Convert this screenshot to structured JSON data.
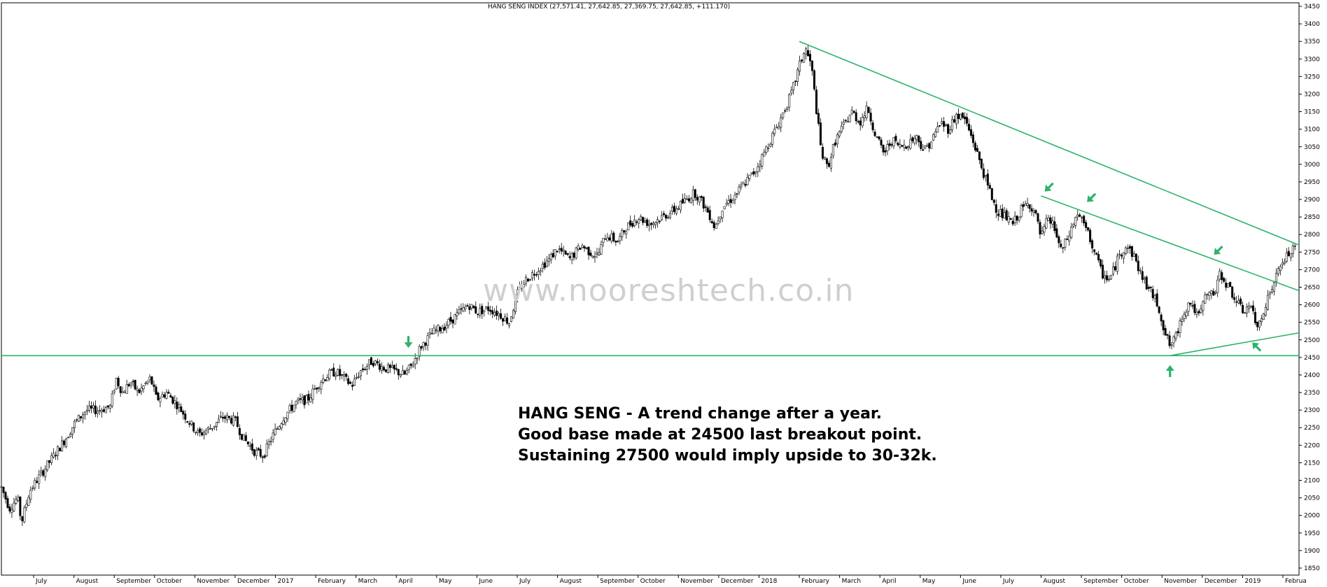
{
  "chart_data": {
    "type": "candlestick",
    "title": "HANG SENG INDEX (27,571.41, 27,642.85, 27,369.75, 27,642.85, +111.170)",
    "xlabel": "",
    "ylabel": "",
    "ylim": [
      18300,
      34600
    ],
    "grid": false,
    "y_ticks": [
      18500,
      19000,
      19500,
      20000,
      20500,
      21000,
      21500,
      22000,
      22500,
      23000,
      23500,
      24000,
      24500,
      25000,
      25500,
      26000,
      26500,
      27000,
      27500,
      28000,
      28500,
      29000,
      29500,
      30000,
      30500,
      31000,
      31500,
      32000,
      32500,
      33000,
      33500,
      34000,
      34500
    ],
    "y_tick_labels": [
      "1850",
      "1900",
      "1950",
      "2000",
      "2050",
      "2100",
      "2150",
      "2200",
      "2250",
      "2300",
      "2350",
      "2400",
      "2450",
      "2500",
      "2550",
      "2600",
      "2650",
      "2700",
      "2750",
      "2800",
      "2850",
      "2900",
      "2950",
      "3000",
      "3050",
      "3100",
      "3150",
      "3200",
      "3250",
      "3300",
      "3350",
      "3400",
      "3450"
    ],
    "x_ticks": [
      {
        "label": "July",
        "x": 0.0
      },
      {
        "label": "August",
        "x": 1.0
      },
      {
        "label": "September",
        "x": 2.0
      },
      {
        "label": "October",
        "x": 3.0
      },
      {
        "label": "November",
        "x": 4.0
      },
      {
        "label": "December",
        "x": 5.0
      },
      {
        "label": "2017",
        "x": 6.0
      },
      {
        "label": "February",
        "x": 7.0
      },
      {
        "label": "March",
        "x": 8.0
      },
      {
        "label": "April",
        "x": 9.0
      },
      {
        "label": "May",
        "x": 10.0
      },
      {
        "label": "June",
        "x": 11.0
      },
      {
        "label": "July",
        "x": 12.0
      },
      {
        "label": "August",
        "x": 13.0
      },
      {
        "label": "September",
        "x": 14.0
      },
      {
        "label": "October",
        "x": 15.0
      },
      {
        "label": "November",
        "x": 16.0
      },
      {
        "label": "December",
        "x": 17.0
      },
      {
        "label": "2018",
        "x": 18.0
      },
      {
        "label": "February",
        "x": 19.0
      },
      {
        "label": "March",
        "x": 20.0
      },
      {
        "label": "April",
        "x": 21.0
      },
      {
        "label": "May",
        "x": 22.0
      },
      {
        "label": "June",
        "x": 23.0
      },
      {
        "label": "July",
        "x": 24.0
      },
      {
        "label": "August",
        "x": 25.0
      },
      {
        "label": "September",
        "x": 26.0
      },
      {
        "label": "October",
        "x": 27.0
      },
      {
        "label": "November",
        "x": 28.0
      },
      {
        "label": "December",
        "x": 29.0
      },
      {
        "label": "2019",
        "x": 30.0
      },
      {
        "label": "Februa",
        "x": 31.0
      }
    ],
    "xlim": [
      -0.8,
      31.4
    ],
    "price_path": [
      [
        -0.8,
        20800
      ],
      [
        -0.6,
        20200
      ],
      [
        -0.4,
        20500
      ],
      [
        -0.3,
        19800
      ],
      [
        -0.1,
        20700
      ],
      [
        0.2,
        21200
      ],
      [
        0.5,
        21700
      ],
      [
        0.8,
        22200
      ],
      [
        1.0,
        22600
      ],
      [
        1.3,
        23000
      ],
      [
        1.6,
        23000
      ],
      [
        1.9,
        23100
      ],
      [
        2.05,
        23900
      ],
      [
        2.2,
        23500
      ],
      [
        2.4,
        23800
      ],
      [
        2.6,
        23500
      ],
      [
        2.9,
        23900
      ],
      [
        3.05,
        23300
      ],
      [
        3.3,
        23500
      ],
      [
        3.6,
        23100
      ],
      [
        3.9,
        22600
      ],
      [
        4.1,
        22300
      ],
      [
        4.4,
        22500
      ],
      [
        4.7,
        22800
      ],
      [
        5.0,
        22700
      ],
      [
        5.2,
        22200
      ],
      [
        5.5,
        21800
      ],
      [
        5.7,
        21700
      ],
      [
        5.9,
        22200
      ],
      [
        6.2,
        22800
      ],
      [
        6.5,
        23200
      ],
      [
        6.8,
        23300
      ],
      [
        7.1,
        23800
      ],
      [
        7.3,
        24000
      ],
      [
        7.5,
        24100
      ],
      [
        7.7,
        23900
      ],
      [
        7.9,
        23700
      ],
      [
        8.1,
        24100
      ],
      [
        8.4,
        24400
      ],
      [
        8.7,
        24200
      ],
      [
        9.0,
        24100
      ],
      [
        9.2,
        24000
      ],
      [
        9.4,
        24300
      ],
      [
        9.6,
        24800
      ],
      [
        9.9,
        25200
      ],
      [
        10.2,
        25400
      ],
      [
        10.5,
        25700
      ],
      [
        10.8,
        26000
      ],
      [
        11.0,
        25800
      ],
      [
        11.3,
        25900
      ],
      [
        11.6,
        25700
      ],
      [
        11.8,
        25500
      ],
      [
        12.0,
        26300
      ],
      [
        12.2,
        26700
      ],
      [
        12.5,
        27000
      ],
      [
        12.8,
        27300
      ],
      [
        13.0,
        27600
      ],
      [
        13.3,
        27300
      ],
      [
        13.6,
        27700
      ],
      [
        13.8,
        27500
      ],
      [
        14.0,
        27400
      ],
      [
        14.2,
        28000
      ],
      [
        14.5,
        27800
      ],
      [
        14.7,
        28200
      ],
      [
        15.0,
        28500
      ],
      [
        15.3,
        28300
      ],
      [
        15.6,
        28500
      ],
      [
        15.9,
        28700
      ],
      [
        16.2,
        29000
      ],
      [
        16.4,
        29200
      ],
      [
        16.6,
        28900
      ],
      [
        16.8,
        28500
      ],
      [
        16.9,
        28200
      ],
      [
        17.1,
        28800
      ],
      [
        17.4,
        29100
      ],
      [
        17.6,
        29400
      ],
      [
        17.9,
        29800
      ],
      [
        18.2,
        30500
      ],
      [
        18.5,
        31200
      ],
      [
        18.8,
        32000
      ],
      [
        19.0,
        32800
      ],
      [
        19.15,
        33300
      ],
      [
        19.3,
        32800
      ],
      [
        19.45,
        31300
      ],
      [
        19.55,
        30300
      ],
      [
        19.7,
        29900
      ],
      [
        19.9,
        30700
      ],
      [
        20.1,
        31100
      ],
      [
        20.3,
        31500
      ],
      [
        20.5,
        31200
      ],
      [
        20.7,
        31600
      ],
      [
        20.9,
        30800
      ],
      [
        21.1,
        30300
      ],
      [
        21.3,
        30700
      ],
      [
        21.5,
        30500
      ],
      [
        21.7,
        30600
      ],
      [
        21.9,
        30800
      ],
      [
        22.1,
        30400
      ],
      [
        22.3,
        30700
      ],
      [
        22.5,
        31200
      ],
      [
        22.7,
        31000
      ],
      [
        22.9,
        31400
      ],
      [
        23.1,
        31300
      ],
      [
        23.3,
        30700
      ],
      [
        23.5,
        30000
      ],
      [
        23.7,
        29300
      ],
      [
        23.9,
        28700
      ],
      [
        24.1,
        28500
      ],
      [
        24.3,
        28300
      ],
      [
        24.5,
        28700
      ],
      [
        24.7,
        28900
      ],
      [
        24.85,
        28600
      ],
      [
        25.0,
        27900
      ],
      [
        25.15,
        28400
      ],
      [
        25.3,
        28300
      ],
      [
        25.5,
        27500
      ],
      [
        25.7,
        28000
      ],
      [
        25.9,
        28600
      ],
      [
        26.1,
        28200
      ],
      [
        26.3,
        27600
      ],
      [
        26.5,
        26900
      ],
      [
        26.7,
        26700
      ],
      [
        26.9,
        27300
      ],
      [
        27.1,
        27700
      ],
      [
        27.3,
        27400
      ],
      [
        27.5,
        26800
      ],
      [
        27.7,
        26400
      ],
      [
        27.9,
        26000
      ],
      [
        28.05,
        25300
      ],
      [
        28.2,
        24800
      ],
      [
        28.35,
        25100
      ],
      [
        28.5,
        25700
      ],
      [
        28.7,
        26100
      ],
      [
        28.9,
        25600
      ],
      [
        29.1,
        26300
      ],
      [
        29.3,
        26300
      ],
      [
        29.45,
        26900
      ],
      [
        29.6,
        26600
      ],
      [
        29.8,
        26200
      ],
      [
        30.0,
        25800
      ],
      [
        30.2,
        26000
      ],
      [
        30.35,
        25300
      ],
      [
        30.5,
        25800
      ],
      [
        30.7,
        26400
      ],
      [
        30.9,
        27000
      ],
      [
        31.1,
        27400
      ],
      [
        31.3,
        27600
      ]
    ],
    "horizontal_line": {
      "y": 24550,
      "color": "#2db36b"
    },
    "trendlines": [
      {
        "name": "resistance-from-peak",
        "points": [
          [
            19.0,
            33500
          ],
          [
            31.4,
            27700
          ]
        ],
        "color": "#2db36b"
      },
      {
        "name": "resistance-inner",
        "points": [
          [
            25.0,
            29100
          ],
          [
            31.4,
            26400
          ]
        ],
        "color": "#2db36b"
      },
      {
        "name": "support-rising",
        "points": [
          [
            28.2,
            24550
          ],
          [
            31.4,
            25200
          ]
        ],
        "color": "#2db36b"
      }
    ],
    "markers": [
      {
        "name": "arrow-down-april",
        "x": 9.3,
        "y": 24950,
        "dir": "down"
      },
      {
        "name": "arrow-down-left-august",
        "x": 25.2,
        "y": 29350,
        "dir": "down-left"
      },
      {
        "name": "arrow-down-left-september",
        "x": 26.25,
        "y": 29050,
        "dir": "down-left"
      },
      {
        "name": "arrow-down-left-december",
        "x": 29.4,
        "y": 27550,
        "dir": "down-left"
      },
      {
        "name": "arrow-up-october",
        "x": 28.2,
        "y": 24100,
        "dir": "up"
      },
      {
        "name": "arrow-up-left-january",
        "x": 30.35,
        "y": 24800,
        "dir": "up-left"
      }
    ],
    "annotation_lines": [
      "HANG SENG - A trend change after a year.",
      "Good base made at 24500 last breakout point.",
      "Sustaining 27500 would imply upside to 30-32k."
    ],
    "watermark": "www.nooreshtech.co.in"
  }
}
